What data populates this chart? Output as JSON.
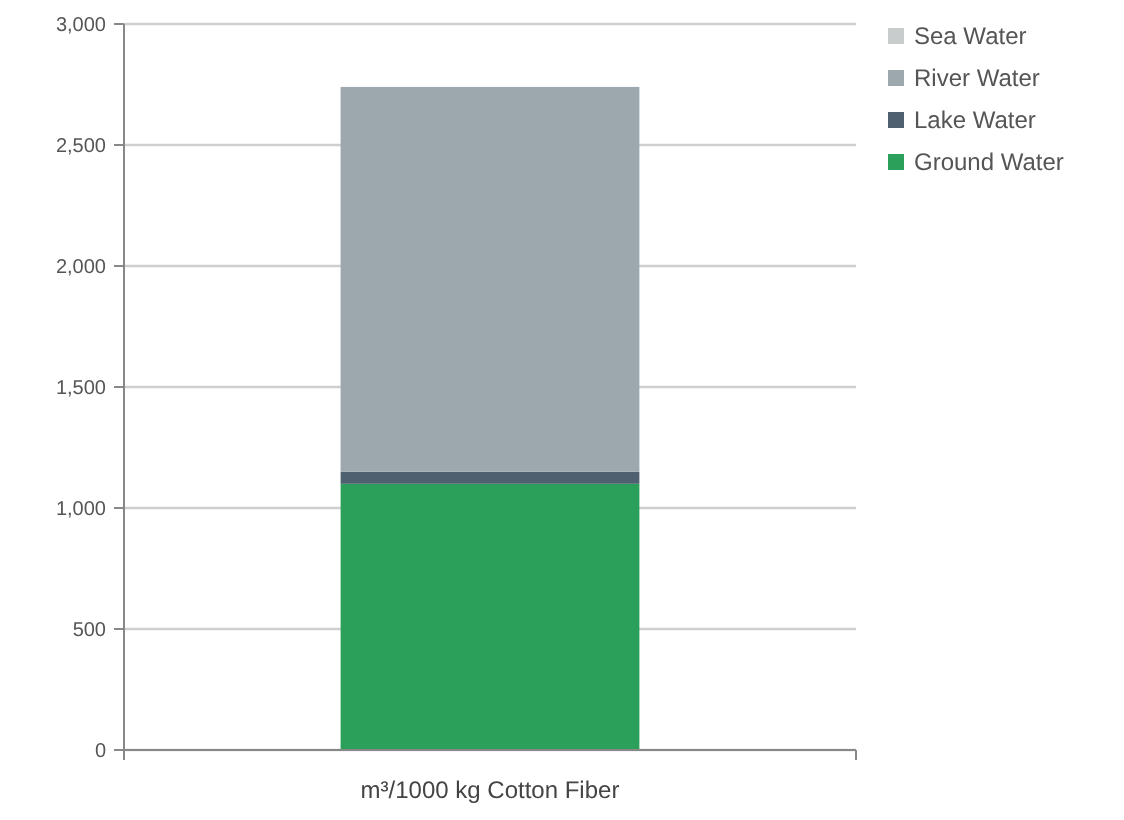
{
  "chart_data": {
    "type": "bar",
    "stacked": true,
    "categories": [
      "m³/1000 kg Cotton Fiber"
    ],
    "series": [
      {
        "name": "Ground Water",
        "color": "#2aa05a",
        "values": [
          1100
        ]
      },
      {
        "name": "Lake Water",
        "color": "#4f6070",
        "values": [
          50
        ]
      },
      {
        "name": "River Water",
        "color": "#9ca8ae",
        "values": [
          1590
        ]
      },
      {
        "name": "Sea Water",
        "color": "#c8cccd",
        "values": [
          0
        ]
      }
    ],
    "ylim": [
      0,
      3000
    ],
    "yticks": [
      {
        "value": 0,
        "label": "0"
      },
      {
        "value": 500,
        "label": "500"
      },
      {
        "value": 1000,
        "label": "1,000"
      },
      {
        "value": 1500,
        "label": "1,500"
      },
      {
        "value": 2000,
        "label": "2,000"
      },
      {
        "value": 2500,
        "label": "2,500"
      },
      {
        "value": 3000,
        "label": "3,000"
      }
    ],
    "grid": "y",
    "legend": "right"
  }
}
